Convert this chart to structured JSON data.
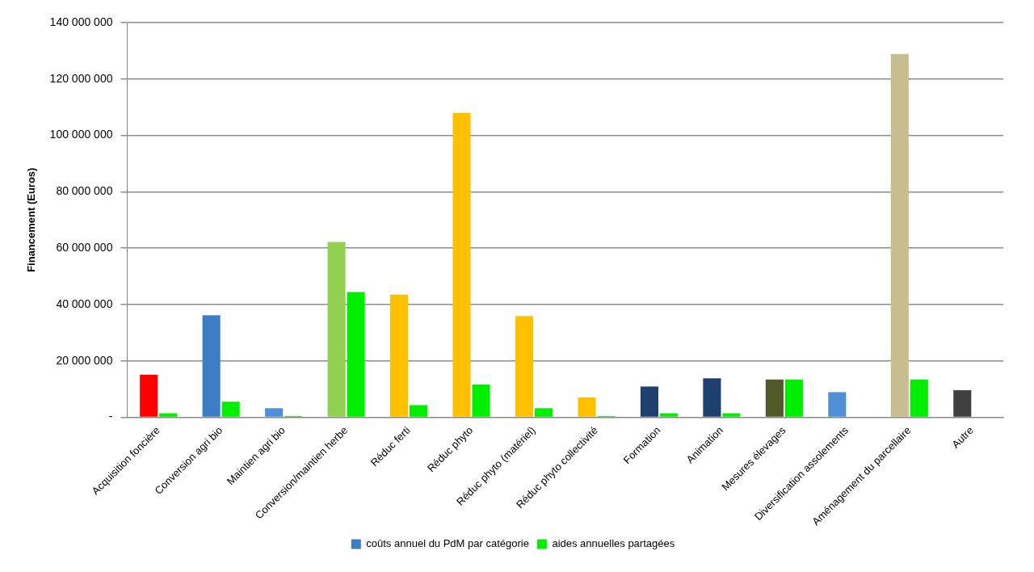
{
  "chart_data": {
    "type": "bar",
    "ylabel": "Financement (Euros)",
    "categories": [
      "Acquisition foncière",
      "Conversion agri bio",
      "Maintien agri bio",
      "Conversion/maintien herbe",
      "Réduc ferti",
      "Réduc phyto",
      "Réduc phyto (matériel)",
      "Réduc phyto collectivité",
      "Formation",
      "Animation",
      "Mesures élevages",
      "Diversification assolements",
      "Aménagement du parcellaire",
      "Autre"
    ],
    "series": [
      {
        "name": "coûts annuel du PdM par catégorie",
        "color": "#3c7dc4",
        "colors": [
          "#ff0000",
          "#3c7dc4",
          "#4f8fd6",
          "#92d050",
          "#ffc000",
          "#ffc000",
          "#ffc000",
          "#ffc000",
          "#1f3f6e",
          "#1f3f6e",
          "#4f5a28",
          "#4f8fd6",
          "#c8bd90",
          "#404040"
        ],
        "values": [
          15100000,
          36200000,
          3200000,
          62200000,
          43500000,
          108000000,
          35900000,
          7000000,
          10900000,
          13800000,
          13400000,
          8900000,
          128900000,
          9600000
        ]
      },
      {
        "name": "aides annuelles partagées",
        "color": "#00ee00",
        "values": [
          1400000,
          5500000,
          400000,
          44400000,
          4300000,
          11600000,
          3200000,
          400000,
          1400000,
          1400000,
          13400000,
          null,
          13400000,
          null
        ]
      }
    ],
    "ylim": [
      0,
      140000000
    ],
    "yticks": [
      {
        "value": 0,
        "label": "-"
      },
      {
        "value": 20000000,
        "label": "20 000 000"
      },
      {
        "value": 40000000,
        "label": "40 000 000"
      },
      {
        "value": 60000000,
        "label": "60 000 000"
      },
      {
        "value": 80000000,
        "label": "80 000 000"
      },
      {
        "value": 100000000,
        "label": "100 000 000"
      },
      {
        "value": 120000000,
        "label": "120 000 000"
      },
      {
        "value": 140000000,
        "label": "140 000 000"
      }
    ],
    "grid": "y",
    "legend": "bottom"
  }
}
